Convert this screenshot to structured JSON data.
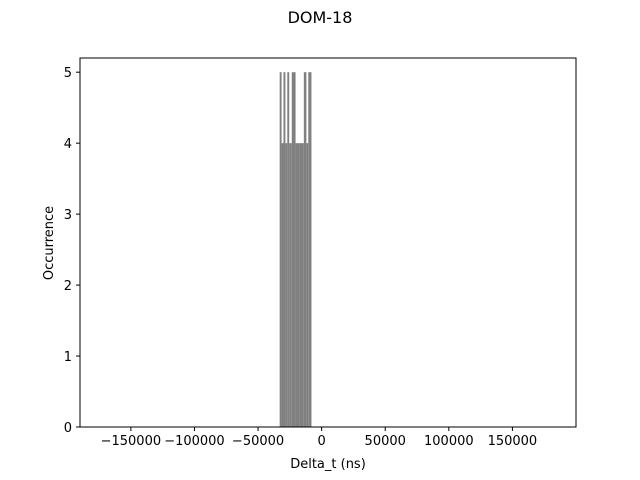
{
  "chart_data": {
    "type": "bar",
    "title": "DOM-18",
    "xlabel": "Delta_t (ns)",
    "ylabel": "Occurrence",
    "xlim": [
      -190000,
      200000
    ],
    "ylim": [
      0,
      5.2
    ],
    "xticks": [
      -150000,
      -100000,
      -50000,
      0,
      50000,
      100000,
      150000
    ],
    "xtick_labels": [
      "−150000",
      "−100000",
      "−50000",
      "0",
      "50000",
      "100000",
      "150000"
    ],
    "yticks": [
      0,
      1,
      2,
      3,
      4,
      5
    ],
    "ytick_labels": [
      "0",
      "1",
      "2",
      "3",
      "4",
      "5"
    ],
    "bar_color": "#808080",
    "grid": false,
    "bins": [
      {
        "x0": -33000,
        "x1": -31500,
        "count": 5
      },
      {
        "x0": -31500,
        "x1": -30000,
        "count": 4
      },
      {
        "x0": -30000,
        "x1": -28500,
        "count": 5
      },
      {
        "x0": -28500,
        "x1": -27000,
        "count": 4
      },
      {
        "x0": -27000,
        "x1": -25500,
        "count": 5
      },
      {
        "x0": -25500,
        "x1": -23500,
        "count": 4
      },
      {
        "x0": -23500,
        "x1": -20500,
        "count": 5
      },
      {
        "x0": -20500,
        "x1": -17500,
        "count": 4
      },
      {
        "x0": -17500,
        "x1": -14000,
        "count": 4
      },
      {
        "x0": -14000,
        "x1": -12000,
        "count": 5
      },
      {
        "x0": -12000,
        "x1": -10500,
        "count": 4
      },
      {
        "x0": -10500,
        "x1": -8000,
        "count": 5
      }
    ]
  }
}
